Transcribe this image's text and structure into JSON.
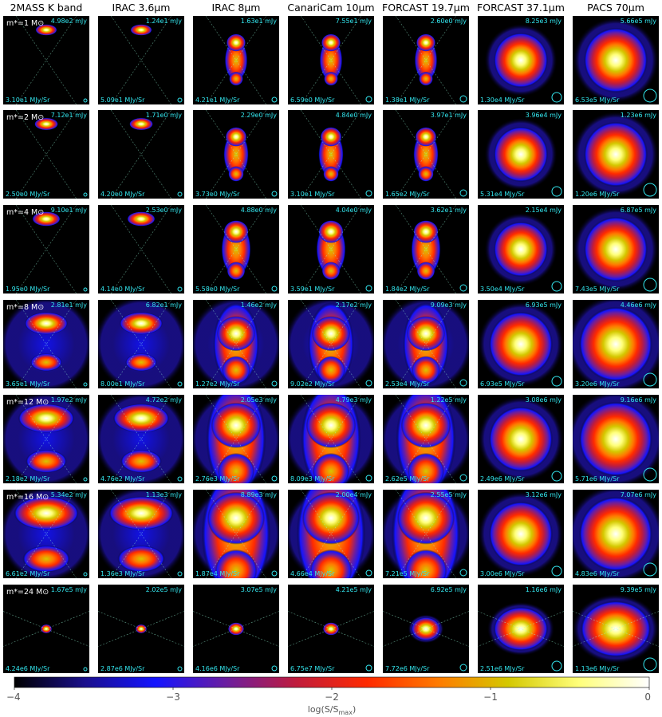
{
  "columns": [
    {
      "label": "2MASS K band"
    },
    {
      "label": "IRAC 3.6μm"
    },
    {
      "label": "IRAC 8μm"
    },
    {
      "label": "CanariCam 10μm"
    },
    {
      "label": "FORCAST 19.7μm"
    },
    {
      "label": "FORCAST 37.1μm"
    },
    {
      "label": "PACS 70μm"
    }
  ],
  "rows": [
    {
      "label": "m*=1 M⊙",
      "mass": 1,
      "peaks": [
        "4.98e2 mJy",
        "1.24e1 mJy",
        "1.63e1 mJy",
        "7.55e1 mJy",
        "2.60e0 mJy",
        "8.25e3 mJy",
        "5.66e5 mJy"
      ],
      "bases": [
        "3.10e1 MJy/Sr",
        "5.09e1 MJy/Sr",
        "4.21e1 MJy/Sr",
        "6.59e0 MJy/Sr",
        "1.38e1 MJy/Sr",
        "1.30e4 MJy/Sr",
        "6.53e5 MJy/Sr"
      ]
    },
    {
      "label": "m*=2 M⊙",
      "mass": 2,
      "peaks": [
        "7.12e1 mJy",
        "1.71e0 mJy",
        "2.29e0 mJy",
        "4.84e0 mJy",
        "3.97e1 mJy",
        "3.96e4 mJy",
        "1.23e6 mJy"
      ],
      "bases": [
        "2.50e0 MJy/Sr",
        "4.20e0 MJy/Sr",
        "3.73e0 MJy/Sr",
        "3.10e1 MJy/Sr",
        "1.65e2 MJy/Sr",
        "5.31e4 MJy/Sr",
        "1.20e6 MJy/Sr"
      ]
    },
    {
      "label": "m*=4 M⊙",
      "mass": 4,
      "peaks": [
        "9.10e1 mJy",
        "2.53e0 mJy",
        "4.88e0 mJy",
        "4.04e0 mJy",
        "3.62e1 mJy",
        "2.15e4 mJy",
        "6.87e5 mJy"
      ],
      "bases": [
        "1.95e0 MJy/Sr",
        "4.14e0 MJy/Sr",
        "5.58e0 MJy/Sr",
        "3.59e1 MJy/Sr",
        "1.84e2 MJy/Sr",
        "3.50e4 MJy/Sr",
        "7.43e5 MJy/Sr"
      ]
    },
    {
      "label": "m*=8 M⊙",
      "mass": 8,
      "peaks": [
        "2.81e1 mJy",
        "6.82e1 mJy",
        "1.46e2 mJy",
        "2.17e2 mJy",
        "9.09e3 mJy",
        "6.93e5 mJy",
        "4.46e6 mJy"
      ],
      "bases": [
        "3.65e1 MJy/Sr",
        "8.00e1 MJy/Sr",
        "1.27e2 MJy/Sr",
        "9.02e2 MJy/Sr",
        "2.53e4 MJy/Sr",
        "6.93e5 MJy/Sr",
        "3.20e6 MJy/Sr"
      ]
    },
    {
      "label": "m*=12 M⊙",
      "mass": 12,
      "peaks": [
        "1.97e2 mJy",
        "4.72e2 mJy",
        "2.05e3 mJy",
        "4.79e3 mJy",
        "1.22e5 mJy",
        "3.08e6 mJy",
        "9.16e6 mJy"
      ],
      "bases": [
        "2.18e2 MJy/Sr",
        "4.76e2 MJy/Sr",
        "2.76e3 MJy/Sr",
        "8.09e3 MJy/Sr",
        "2.62e5 MJy/Sr",
        "2.49e6 MJy/Sr",
        "5.71e6 MJy/Sr"
      ]
    },
    {
      "label": "m*=16 M⊙",
      "mass": 16,
      "peaks": [
        "5.34e2 mJy",
        "1.13e3 mJy",
        "8.89e3 mJy",
        "2.00e4 mJy",
        "2.55e5 mJy",
        "3.12e6 mJy",
        "7.07e6 mJy"
      ],
      "bases": [
        "6.61e2 MJy/Sr",
        "1.36e3 MJy/Sr",
        "1.87e4 MJy/Sr",
        "4.66e4 MJy/Sr",
        "7.21e5 MJy/Sr",
        "3.00e6 MJy/Sr",
        "4.83e6 MJy/Sr"
      ]
    },
    {
      "label": "m*=24 M⊙",
      "mass": 24,
      "peaks": [
        "1.67e5 mJy",
        "2.02e5 mJy",
        "3.07e5 mJy",
        "4.21e5 mJy",
        "6.92e5 mJy",
        "1.16e6 mJy",
        "9.39e5 mJy"
      ],
      "bases": [
        "4.24e6 MJy/Sr",
        "2.87e6 MJy/Sr",
        "4.16e6 MJy/Sr",
        "6.75e7 MJy/Sr",
        "7.72e6 MJy/Sr",
        "2.51e6 MJy/Sr",
        "1.13e6 MJy/Sr"
      ]
    }
  ],
  "colorbar": {
    "ticks": [
      "−4",
      "−3",
      "−2",
      "−1",
      "0"
    ],
    "tick_values": [
      -4,
      -3,
      -2,
      -1,
      0
    ],
    "label": "log(S/Smax)",
    "label_parts": {
      "prefix": "log(S/S",
      "sub": "max",
      "suffix": ")"
    },
    "range": [
      -4,
      0
    ]
  },
  "colors": {
    "panel_bg": "#000000",
    "annotation": "#33e6ee",
    "row_label": "#ffffff",
    "colormap": [
      "#000000",
      "#1a0f8c",
      "#1414ff",
      "#6b1ea0",
      "#c01c3c",
      "#ff2a00",
      "#ff7a00",
      "#d4c800",
      "#ffff7a",
      "#ffffff"
    ]
  }
}
